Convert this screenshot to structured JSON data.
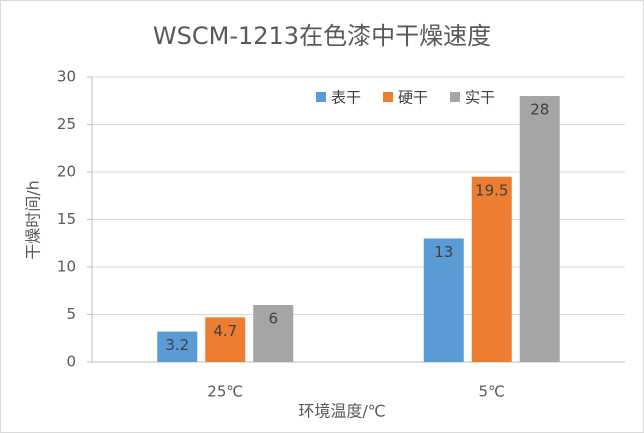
{
  "chart_data": {
    "type": "bar",
    "title": "WSCM-1213在色漆中干燥速度",
    "x_label": "环境温度/℃",
    "y_label": "干燥时间/h",
    "categories": [
      "25℃",
      "5℃"
    ],
    "series": [
      {
        "name": "表干",
        "color": "#5b9bd5",
        "values": [
          3.2,
          13
        ]
      },
      {
        "name": "硬干",
        "color": "#ed7d31",
        "values": [
          4.7,
          19.5
        ]
      },
      {
        "name": "实干",
        "color": "#a5a5a5",
        "values": [
          6,
          28
        ]
      }
    ],
    "ylim": [
      0,
      30
    ],
    "yticks": [
      0,
      5,
      10,
      15,
      20,
      25,
      30
    ],
    "grid": true,
    "legend": "top-right"
  }
}
